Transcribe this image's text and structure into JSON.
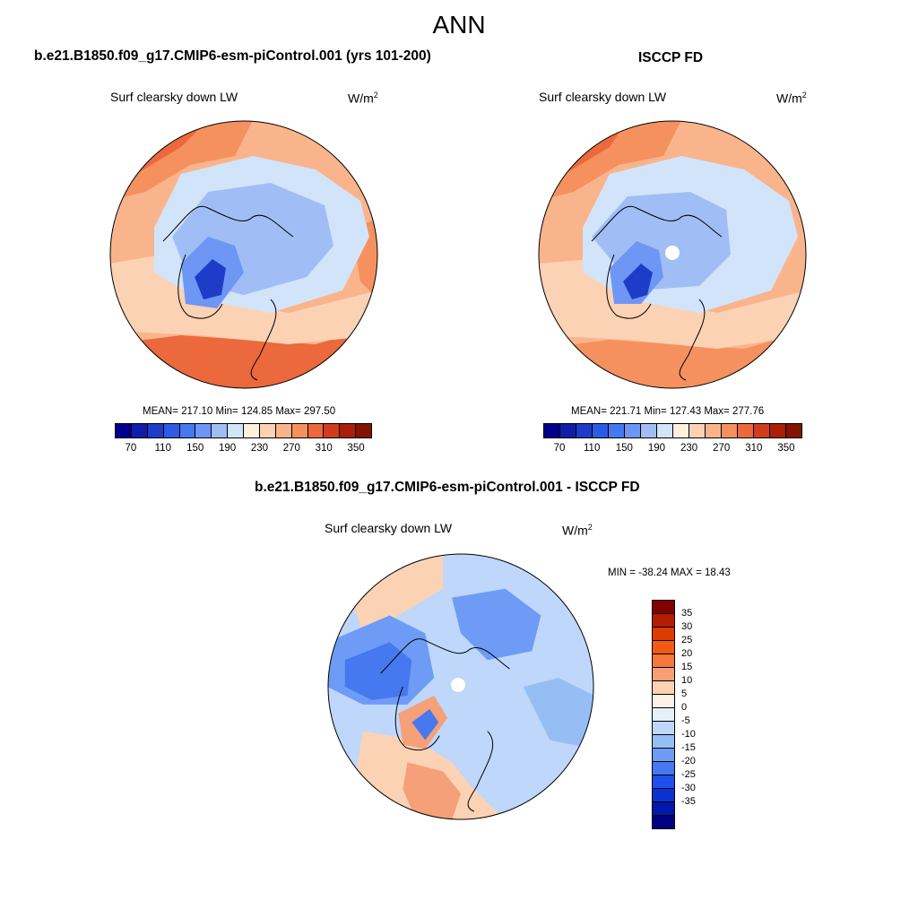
{
  "title": "ANN",
  "panels": {
    "model": {
      "title": "b.e21.B1850.f09_g17.CMIP6-esm-piControl.001 (yrs 101-200)",
      "variable": "Surf clearsky down LW",
      "units": "W/m",
      "units_exp": "2",
      "stats": "MEAN= 217.10  Min= 124.85  Max= 297.50"
    },
    "obs": {
      "title": "ISCCP FD",
      "variable": "Surf clearsky down LW",
      "units": "W/m",
      "units_exp": "2",
      "stats": "MEAN= 221.71  Min= 127.43  Max= 277.76"
    },
    "diff": {
      "title": "b.e21.B1850.f09_g17.CMIP6-esm-piControl.001 - ISCCP FD",
      "variable": "Surf clearsky down LW",
      "units": "W/m",
      "units_exp": "2",
      "stats": "MIN = -38.24 MAX =  18.43"
    }
  },
  "colorbar_abs": {
    "colors": [
      "#00008c",
      "#0f1eaa",
      "#1e3cc8",
      "#2d5ae6",
      "#4678f0",
      "#6e96f5",
      "#a0bef5",
      "#d2e4fa",
      "#fff0dc",
      "#fcd2b4",
      "#fab48c",
      "#f5915f",
      "#eb693c",
      "#d23c1e",
      "#aa1e0a",
      "#821400"
    ],
    "tick_labels": [
      "70",
      "110",
      "150",
      "190",
      "230",
      "270",
      "310",
      "350"
    ]
  },
  "colorbar_diff": {
    "colors": [
      "#820000",
      "#b41e00",
      "#dc3c00",
      "#f55a14",
      "#f5783c",
      "#f5a078",
      "#fcd2b4",
      "#fff0e6",
      "#e6f0fa",
      "#bed7fa",
      "#96bef5",
      "#6e9bf5",
      "#4678f0",
      "#1e50f0",
      "#0a32d2",
      "#0019aa",
      "#000082"
    ],
    "tick_labels": [
      "35",
      "30",
      "25",
      "20",
      "15",
      "10",
      "5",
      "0",
      "-5",
      "-10",
      "-15",
      "-20",
      "-25",
      "-30",
      "-35"
    ]
  },
  "map_fields": {
    "model_desc": "polar stereographic Arctic map of surface clear-sky downward longwave",
    "colors": {
      "warm1": "#fcd2b4",
      "warm2": "#fab48c",
      "warm3": "#f5915f",
      "warm4": "#eb693c",
      "cool1": "#d2e4fa",
      "cool2": "#a0bef5",
      "cool3": "#6e96f5",
      "cool4": "#4678f0",
      "cool5": "#1e3cc8",
      "neutral": "#fff0dc"
    }
  }
}
